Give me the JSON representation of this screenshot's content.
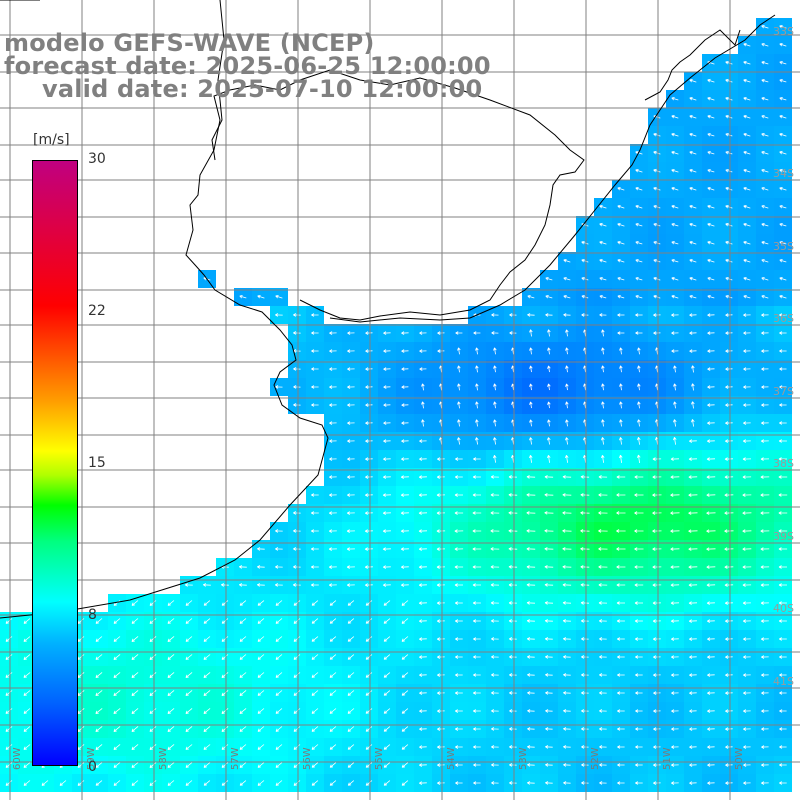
{
  "title": {
    "line1": "modelo GEFS-WAVE (NCEP)",
    "line2": "forecast date: 2025-06-25 12:00:00",
    "line3": "valid date: 2025-07-10 12:00:00"
  },
  "colorbar": {
    "unit": "[m/s]",
    "ticks": [
      "30",
      "22",
      "15",
      "8",
      "0"
    ],
    "min_value": 0,
    "max_value": 30,
    "colors": [
      "#0000ff",
      "#0060ff",
      "#00b0ff",
      "#00ffff",
      "#00ff80",
      "#00ff00",
      "#b0ff00",
      "#ffff00",
      "#ffa000",
      "#ff5000",
      "#ff0000",
      "#e00040",
      "#c00080"
    ]
  },
  "latitude_labels": [
    "33S",
    "34S",
    "35S",
    "36S",
    "37S",
    "38S",
    "39S",
    "40S",
    "41S"
  ],
  "longitude_labels": [
    "60W",
    "59W",
    "58W",
    "57W",
    "56W",
    "55W",
    "54W",
    "53W",
    "52W",
    "51W",
    "50W"
  ],
  "map": {
    "land_color": "#ffffff",
    "grid_color": "#808080",
    "coastline_color": "#000000",
    "field": "wind speed and direction"
  }
}
